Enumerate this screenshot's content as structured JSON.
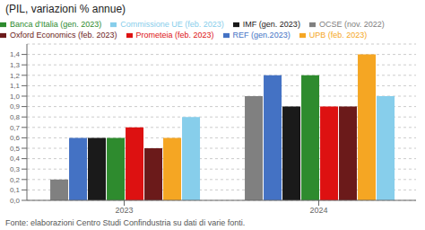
{
  "chart_data": {
    "type": "bar",
    "title": "(PIL, variazioni % annue)",
    "categories": [
      "2023",
      "2024"
    ],
    "series": [
      {
        "name": "OCSE (nov. 2022)",
        "color": "#808080",
        "values": [
          0.2,
          1.0
        ]
      },
      {
        "name": "REF (gen.2023)",
        "color": "#4472c4",
        "values": [
          0.6,
          1.2
        ]
      },
      {
        "name": "IMF (gen. 2023)",
        "color": "#1a1a1a",
        "values": [
          0.6,
          0.9
        ]
      },
      {
        "name": "Banca d'Italia (gen. 2023)",
        "color": "#2e8b2e",
        "values": [
          0.6,
          1.2
        ]
      },
      {
        "name": "Prometeia (feb. 2023)",
        "color": "#dd1111",
        "values": [
          0.7,
          0.9
        ]
      },
      {
        "name": "Oxford Economics (feb. 2023)",
        "color": "#6b1a1a",
        "values": [
          0.5,
          0.9
        ]
      },
      {
        "name": "UPB (feb. 2023)",
        "color": "#f5a623",
        "values": [
          0.6,
          1.4
        ]
      },
      {
        "name": "Commissione UE (feb. 2023)",
        "color": "#87ceeb",
        "values": [
          0.8,
          1.0
        ]
      }
    ],
    "ylim": [
      0,
      1.5
    ],
    "yticks": [
      {
        "value": 0.0,
        "label": "0,0"
      },
      {
        "value": 0.1,
        "label": "0,1"
      },
      {
        "value": 0.2,
        "label": "0,2"
      },
      {
        "value": 0.3,
        "label": "0,3"
      },
      {
        "value": 0.4,
        "label": "0,4"
      },
      {
        "value": 0.5,
        "label": "0,5"
      },
      {
        "value": 0.6,
        "label": "0,6"
      },
      {
        "value": 0.7,
        "label": "0,7"
      },
      {
        "value": 0.8,
        "label": "0,8"
      },
      {
        "value": 0.9,
        "label": "0,9"
      },
      {
        "value": 1.0,
        "label": "1,0"
      },
      {
        "value": 1.1,
        "label": "1,1"
      },
      {
        "value": 1.2,
        "label": "1,2"
      },
      {
        "value": 1.3,
        "label": "1,3"
      },
      {
        "value": 1.4,
        "label": "1,4"
      }
    ],
    "grid": true,
    "legend": "upper left",
    "annotations": [
      "Fonte: elaborazioni Centro Studi Confindustria su dati di varie fonti."
    ]
  }
}
